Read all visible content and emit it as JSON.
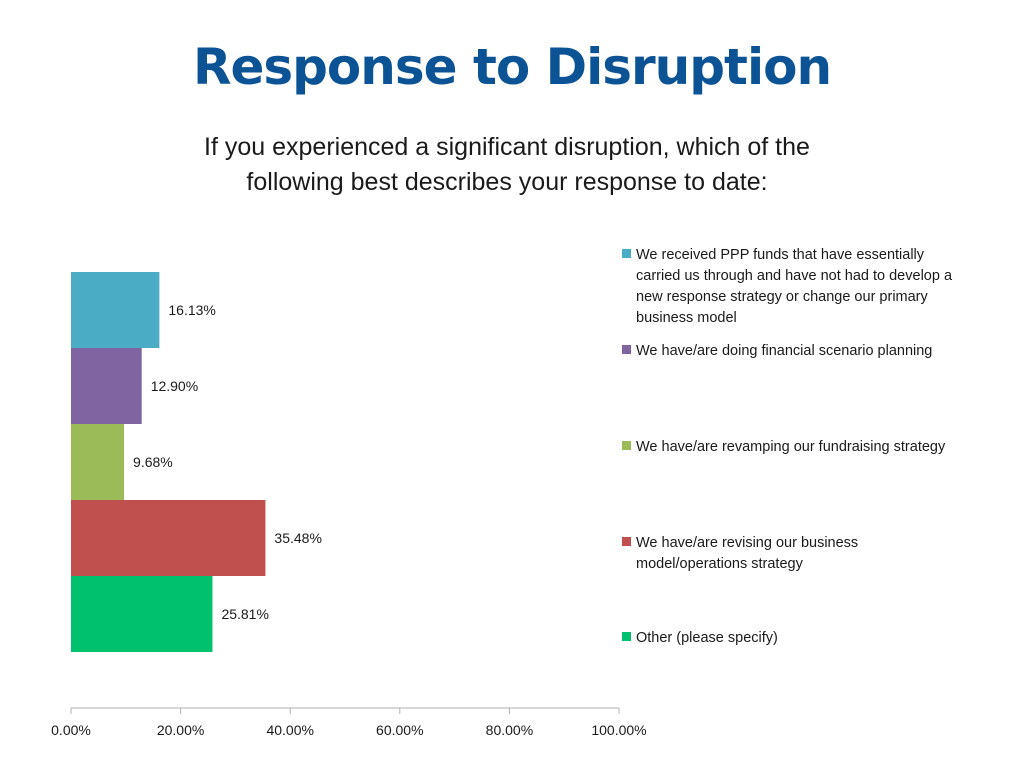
{
  "page": {
    "title": "Response to Disruption",
    "subtitle_line1": "If you experienced a significant disruption, which of the",
    "subtitle_line2": "following best describes your response to date:"
  },
  "chart_data": {
    "type": "bar",
    "orientation": "horizontal",
    "xlim": [
      0,
      100
    ],
    "x_ticks": [
      "0.00%",
      "20.00%",
      "40.00%",
      "60.00%",
      "80.00%",
      "100.00%"
    ],
    "grid": false,
    "legend_position": "right",
    "series": [
      {
        "name": "We received PPP funds that have essentially carried us through and have not had to develop a new response strategy or change our primary business model",
        "value": 16.13,
        "label": "16.13%",
        "color": "#4bacc6"
      },
      {
        "name": "We have/are doing financial scenario planning",
        "value": 12.9,
        "label": "12.90%",
        "color": "#8064a2"
      },
      {
        "name": "We have/are revamping our fundraising strategy",
        "value": 9.68,
        "label": "9.68%",
        "color": "#9bbb59"
      },
      {
        "name": "We have/are revising our business model/operations strategy",
        "value": 35.48,
        "label": "35.48%",
        "color": "#c0504d"
      },
      {
        "name": "Other (please specify)",
        "value": 25.81,
        "label": "25.81%",
        "color": "#00c16e"
      }
    ]
  }
}
